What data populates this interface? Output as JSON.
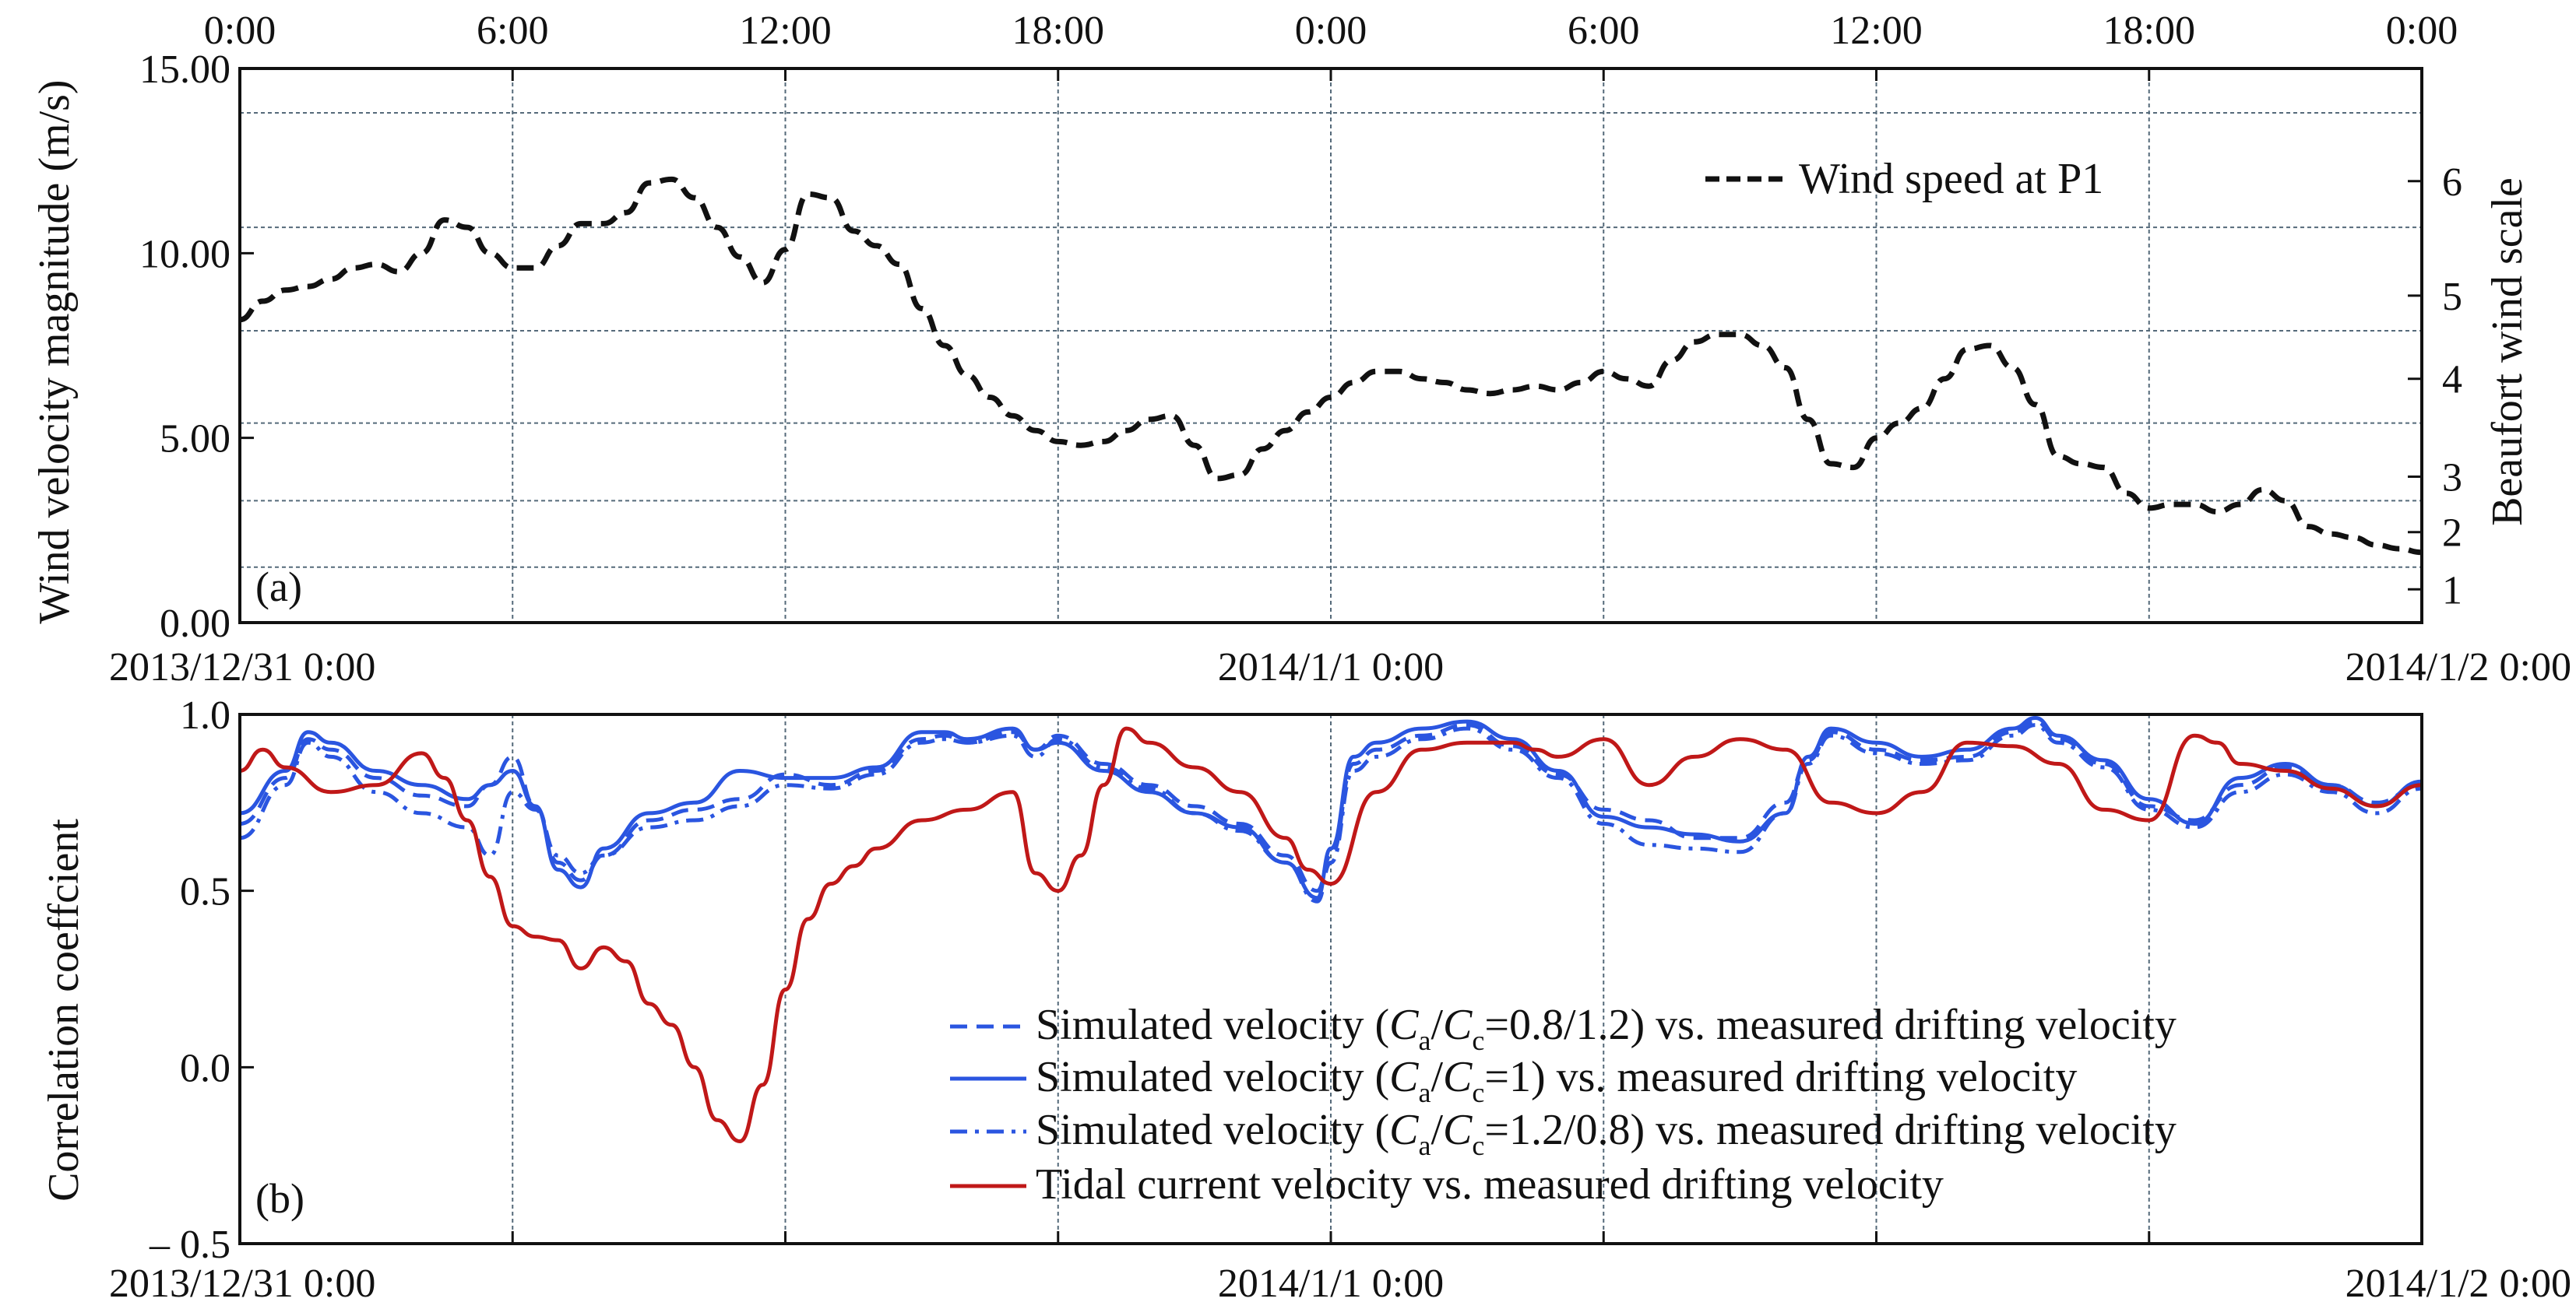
{
  "colors": {
    "axis": "#111111",
    "grid": "#556a7a",
    "wind": "#111111",
    "blue": "#2a55e0",
    "tidal": "#c01818",
    "background": "#ffffff"
  },
  "chart_data": [
    {
      "type": "line",
      "panel_label": "(a)",
      "ylabel": "Wind velocity magnitude (m/s)",
      "y2label": "Beaufort wind scale",
      "xlim": [
        0,
        48
      ],
      "ylim": [
        0,
        15
      ],
      "top_tick_labels": [
        "0:00",
        "6:00",
        "12:00",
        "18:00",
        "0:00",
        "6:00",
        "12:00",
        "18:00",
        "0:00"
      ],
      "bottom_tick_labels": [
        "2013/12/31 0:00",
        "2014/1/1 0:00",
        "2014/1/2 0:00"
      ],
      "y_tick_labels": [
        "0.00",
        "5.00",
        "10.00",
        "15.00"
      ],
      "y_ticks": [
        0,
        5,
        10,
        15
      ],
      "beaufort_tick_labels": [
        "1",
        "2",
        "3",
        "4",
        "5",
        "6"
      ],
      "beaufort_ticks": [
        0.9,
        2.45,
        3.95,
        6.6,
        8.85,
        11.95
      ],
      "beaufort_boundaries": [
        1.5,
        3.3,
        5.4,
        7.9,
        10.7,
        13.8
      ],
      "legend_position": "top-right",
      "series": [
        {
          "name": "Wind speed at P1",
          "style": "dashed",
          "color": "#111111",
          "x": [
            0,
            0.5,
            1,
            1.5,
            2,
            2.5,
            3,
            3.5,
            4,
            4.5,
            5,
            5.5,
            6,
            6.5,
            7,
            7.5,
            8,
            8.5,
            9,
            9.5,
            10,
            10.5,
            11,
            11.5,
            12,
            12.5,
            13,
            13.5,
            14,
            14.5,
            15,
            15.5,
            16,
            16.5,
            17,
            17.5,
            18,
            18.5,
            19,
            19.5,
            20,
            20.5,
            21,
            21.5,
            22,
            22.5,
            23,
            23.5,
            24,
            24.5,
            25,
            25.5,
            26,
            26.5,
            27,
            27.5,
            28,
            28.5,
            29,
            29.5,
            30,
            30.5,
            31,
            31.5,
            32,
            32.5,
            33,
            33.5,
            34,
            34.5,
            35,
            35.5,
            36,
            36.5,
            37,
            37.5,
            38,
            38.5,
            39,
            39.5,
            40,
            40.5,
            41,
            41.5,
            42,
            42.5,
            43,
            43.5,
            44,
            44.5,
            45,
            45.5,
            46,
            46.5,
            47,
            47.5,
            48
          ],
          "y": [
            8.2,
            8.7,
            9.0,
            9.1,
            9.3,
            9.6,
            9.7,
            9.5,
            10.0,
            10.9,
            10.7,
            10.0,
            9.6,
            9.6,
            10.2,
            10.8,
            10.8,
            11.1,
            11.9,
            12.0,
            11.5,
            10.7,
            9.9,
            9.2,
            10.1,
            11.6,
            11.5,
            10.6,
            10.2,
            9.7,
            8.5,
            7.5,
            6.7,
            6.1,
            5.6,
            5.2,
            4.9,
            4.8,
            4.9,
            5.2,
            5.5,
            5.6,
            4.8,
            3.9,
            4.0,
            4.7,
            5.2,
            5.7,
            6.1,
            6.5,
            6.8,
            6.8,
            6.6,
            6.5,
            6.3,
            6.2,
            6.3,
            6.4,
            6.3,
            6.5,
            6.8,
            6.6,
            6.4,
            7.1,
            7.6,
            7.8,
            7.8,
            7.5,
            6.9,
            5.5,
            4.3,
            4.2,
            5.0,
            5.4,
            5.8,
            6.6,
            7.4,
            7.5,
            6.9,
            5.9,
            4.5,
            4.3,
            4.2,
            3.5,
            3.1,
            3.2,
            3.2,
            3.0,
            3.2,
            3.6,
            3.3,
            2.6,
            2.4,
            2.3,
            2.1,
            2.0,
            1.9
          ]
        }
      ]
    },
    {
      "type": "line",
      "panel_label": "(b)",
      "ylabel": "Correlation coeffcient",
      "xlim": [
        0,
        48
      ],
      "ylim": [
        -0.5,
        1.0
      ],
      "y_tick_labels": [
        "– 0.5",
        "0.0",
        "0.5",
        "1.0"
      ],
      "y_ticks": [
        -0.5,
        0.0,
        0.5,
        1.0
      ],
      "bottom_tick_labels": [
        "2013/12/31 0:00",
        "2014/1/1 0:00",
        "2014/1/2 0:00"
      ],
      "legend_position": "bottom-right",
      "legend": [
        {
          "prefix": "Simulated velocity (",
          "c1": "C",
          "sub1": "a",
          "slash": "/",
          "c2": "C",
          "sub2": "c",
          "suffix": "=0.8/1.2) vs. measured drifting velocity"
        },
        {
          "prefix": "Simulated velocity (",
          "c1": "C",
          "sub1": "a",
          "slash": "/",
          "c2": "C",
          "sub2": "c",
          "suffix": "=1) vs. measured drifting velocity"
        },
        {
          "prefix": "Simulated velocity (",
          "c1": "C",
          "sub1": "a",
          "slash": "/",
          "c2": "C",
          "sub2": "c",
          "suffix": "=1.2/0.8) vs. measured drifting velocity"
        },
        {
          "text": "Tidal current velocity vs. measured drifting velocity"
        }
      ],
      "series": [
        {
          "style": "dashed",
          "color": "#2a55e0",
          "x": [
            0,
            1,
            1.5,
            2,
            3,
            4,
            5,
            5.5,
            6,
            6.5,
            7,
            7.5,
            8,
            9,
            10,
            11,
            12,
            13,
            14,
            15,
            15.5,
            16,
            17,
            17.5,
            18,
            19,
            20,
            21,
            22,
            23,
            23.7,
            24,
            24.5,
            25,
            26,
            27,
            28,
            29,
            30,
            31,
            32,
            33,
            34,
            34.5,
            35,
            36,
            37,
            38,
            39,
            39.5,
            40,
            41,
            42,
            43,
            44,
            45,
            46,
            47,
            48
          ],
          "y": [
            0.69,
            0.82,
            0.93,
            0.9,
            0.82,
            0.77,
            0.74,
            0.8,
            0.88,
            0.74,
            0.58,
            0.53,
            0.6,
            0.7,
            0.73,
            0.76,
            0.83,
            0.8,
            0.84,
            0.93,
            0.94,
            0.92,
            0.95,
            0.9,
            0.94,
            0.86,
            0.8,
            0.74,
            0.69,
            0.6,
            0.5,
            0.6,
            0.86,
            0.9,
            0.94,
            0.97,
            0.91,
            0.83,
            0.73,
            0.7,
            0.65,
            0.65,
            0.75,
            0.87,
            0.95,
            0.9,
            0.87,
            0.88,
            0.95,
            0.98,
            0.93,
            0.86,
            0.74,
            0.7,
            0.8,
            0.85,
            0.8,
            0.75,
            0.8
          ]
        },
        {
          "style": "solid",
          "color": "#2a55e0",
          "x": [
            0,
            1,
            1.5,
            2,
            3,
            4,
            5,
            5.5,
            6,
            6.5,
            7,
            7.5,
            8,
            9,
            10,
            11,
            12,
            13,
            14,
            15,
            15.5,
            16,
            17,
            17.5,
            18,
            19,
            20,
            21,
            22,
            23,
            23.7,
            24,
            24.5,
            25,
            26,
            27,
            28,
            29,
            30,
            31,
            32,
            33,
            34,
            34.5,
            35,
            36,
            37,
            38,
            39,
            39.5,
            40,
            41,
            42,
            43,
            44,
            45,
            46,
            47,
            48
          ],
          "y": [
            0.72,
            0.84,
            0.95,
            0.92,
            0.84,
            0.8,
            0.76,
            0.8,
            0.84,
            0.74,
            0.56,
            0.51,
            0.62,
            0.72,
            0.75,
            0.84,
            0.82,
            0.82,
            0.85,
            0.95,
            0.95,
            0.93,
            0.96,
            0.9,
            0.92,
            0.84,
            0.78,
            0.72,
            0.68,
            0.58,
            0.48,
            0.62,
            0.88,
            0.92,
            0.96,
            0.98,
            0.93,
            0.84,
            0.71,
            0.68,
            0.66,
            0.64,
            0.72,
            0.88,
            0.96,
            0.92,
            0.88,
            0.9,
            0.96,
            0.99,
            0.94,
            0.87,
            0.76,
            0.69,
            0.82,
            0.86,
            0.8,
            0.74,
            0.81
          ]
        },
        {
          "style": "dashdot",
          "color": "#2a55e0",
          "x": [
            0,
            1,
            1.5,
            2,
            3,
            4,
            5,
            5.5,
            6,
            6.5,
            7,
            7.5,
            8,
            9,
            10,
            11,
            12,
            13,
            14,
            15,
            15.5,
            16,
            17,
            17.5,
            18,
            19,
            20,
            21,
            22,
            23,
            23.7,
            24,
            24.5,
            25,
            26,
            27,
            28,
            29,
            30,
            31,
            32,
            33,
            34,
            34.5,
            35,
            36,
            37,
            38,
            39,
            39.5,
            40,
            41,
            42,
            43,
            44,
            45,
            46,
            47,
            48
          ],
          "y": [
            0.65,
            0.8,
            0.92,
            0.88,
            0.78,
            0.72,
            0.68,
            0.6,
            0.78,
            0.73,
            0.6,
            0.55,
            0.6,
            0.68,
            0.7,
            0.74,
            0.8,
            0.79,
            0.83,
            0.92,
            0.93,
            0.92,
            0.94,
            0.88,
            0.93,
            0.85,
            0.79,
            0.72,
            0.67,
            0.58,
            0.47,
            0.58,
            0.84,
            0.88,
            0.93,
            0.96,
            0.9,
            0.82,
            0.69,
            0.63,
            0.62,
            0.61,
            0.72,
            0.86,
            0.94,
            0.89,
            0.86,
            0.87,
            0.94,
            0.97,
            0.92,
            0.85,
            0.73,
            0.68,
            0.78,
            0.83,
            0.78,
            0.72,
            0.79
          ]
        },
        {
          "style": "solid",
          "color": "#c01818",
          "x": [
            0,
            0.5,
            1,
            2,
            3,
            4,
            4.5,
            5,
            5.5,
            6,
            6.5,
            7,
            7.5,
            8,
            8.5,
            9,
            9.5,
            10,
            10.5,
            11,
            11.5,
            12,
            12.5,
            13,
            13.5,
            14,
            15,
            16,
            17,
            17.5,
            18,
            18.5,
            19,
            19.5,
            20,
            21,
            22,
            23,
            23.5,
            24,
            25,
            26,
            27,
            28,
            28.5,
            29,
            30,
            31,
            32,
            33,
            34,
            35,
            36,
            37,
            38,
            39,
            40,
            41,
            42,
            43,
            43.5,
            44,
            45,
            46,
            47,
            48
          ],
          "y": [
            0.84,
            0.9,
            0.85,
            0.78,
            0.8,
            0.89,
            0.82,
            0.7,
            0.54,
            0.4,
            0.37,
            0.36,
            0.28,
            0.34,
            0.3,
            0.18,
            0.12,
            0.0,
            -0.15,
            -0.21,
            -0.05,
            0.22,
            0.42,
            0.52,
            0.57,
            0.62,
            0.7,
            0.73,
            0.78,
            0.55,
            0.5,
            0.6,
            0.8,
            0.96,
            0.92,
            0.85,
            0.78,
            0.65,
            0.56,
            0.52,
            0.78,
            0.9,
            0.92,
            0.92,
            0.9,
            0.88,
            0.93,
            0.8,
            0.88,
            0.93,
            0.9,
            0.75,
            0.72,
            0.78,
            0.92,
            0.91,
            0.86,
            0.73,
            0.7,
            0.94,
            0.92,
            0.86,
            0.84,
            0.79,
            0.74,
            0.8
          ]
        }
      ]
    }
  ]
}
